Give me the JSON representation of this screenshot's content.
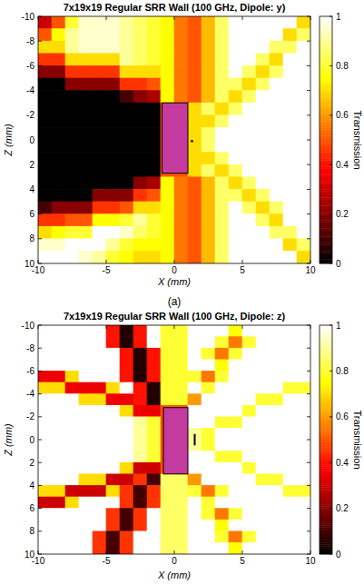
{
  "chart_data": [
    {
      "type": "heatmap",
      "title": "7x19x19 Regular SRR Wall (100 GHz, Dipole: y)",
      "x_label": "X (mm)",
      "y_label": "Z (mm)",
      "caption": "(a)",
      "xlim": [
        -10,
        10
      ],
      "xticks": [
        -10,
        -5,
        0,
        5,
        10
      ],
      "ylim": [
        10,
        -10
      ],
      "yticks": [
        -10,
        -8,
        -6,
        -4,
        -2,
        0,
        2,
        4,
        6,
        8,
        10
      ],
      "clim": [
        0,
        1
      ],
      "cticks": [
        0,
        0.2,
        0.4,
        0.6,
        0.8,
        1
      ],
      "colorbar_label": "Transmission",
      "slab": {
        "x": [
          -0.9,
          1
        ],
        "y": [
          -3,
          2.7
        ]
      },
      "dipole": {
        "x": 1.3,
        "y": 0.1
      },
      "x": [
        -9.5,
        -8.5,
        -7.5,
        -6.5,
        -5.5,
        -4.5,
        -3.5,
        -2.5,
        -1.5,
        -0.5,
        0.5,
        1.5,
        2.5,
        3.5,
        4.5,
        5.5,
        6.5,
        7.5,
        8.5,
        9.5
      ],
      "y": [
        -9.5,
        -8.5,
        -7.5,
        -6.5,
        -5.5,
        -4.5,
        -3.5,
        -2.5,
        -1.5,
        -0.5,
        0.5,
        1.5,
        2.5,
        3.5,
        4.5,
        5.5,
        6.5,
        7.5,
        8.5,
        9.5
      ],
      "cells": [
        [
          0.3,
          0.5,
          0.8,
          0.95,
          0.95,
          0.95,
          0.9,
          0.85,
          0.8,
          0.75,
          0.55,
          0.5,
          0.65,
          0.85,
          1,
          1,
          1,
          1,
          1,
          0.7
        ],
        [
          0.5,
          0.75,
          0.9,
          0.95,
          0.95,
          0.95,
          0.9,
          0.85,
          0.8,
          0.75,
          0.55,
          0.5,
          0.65,
          0.85,
          1,
          1,
          1,
          1,
          0.7,
          0.85
        ],
        [
          0.7,
          0.7,
          0.9,
          0.95,
          0.95,
          0.95,
          0.9,
          0.85,
          0.8,
          0.75,
          0.55,
          0.5,
          0.65,
          0.85,
          1,
          1,
          1,
          0.85,
          0.85,
          1
        ],
        [
          0.45,
          0.45,
          0.7,
          0.7,
          0.7,
          0.7,
          0.9,
          0.85,
          0.8,
          0.75,
          0.55,
          0.5,
          0.65,
          0.85,
          1,
          1,
          0.85,
          0.7,
          1,
          1
        ],
        [
          0.2,
          0.2,
          0.45,
          0.45,
          0.45,
          0.45,
          0.7,
          0.7,
          0.7,
          0.75,
          0.55,
          0.5,
          0.65,
          0.85,
          1,
          0.85,
          0.7,
          0.85,
          1,
          1
        ],
        [
          0,
          0,
          0.2,
          0.2,
          0.2,
          0.2,
          0.45,
          0.45,
          0.5,
          0.75,
          0.55,
          0.5,
          0.65,
          0.85,
          0.85,
          0.7,
          0.85,
          1,
          1,
          1
        ],
        [
          0,
          0,
          0,
          0,
          0,
          0,
          0.1,
          0.2,
          0.25,
          0.75,
          0.55,
          0.5,
          0.65,
          0.85,
          0.7,
          0.85,
          1,
          1,
          1,
          1
        ],
        [
          0,
          0,
          0,
          0,
          0,
          0,
          0,
          0,
          0,
          0.5,
          0.5,
          0.7,
          0.85,
          0.7,
          0.85,
          1,
          1,
          1,
          1,
          1
        ],
        [
          0,
          0,
          0,
          0,
          0,
          0,
          0,
          0,
          0,
          0.5,
          0.5,
          0.7,
          0.7,
          0.85,
          1,
          1,
          1,
          1,
          1,
          1
        ],
        [
          0,
          0,
          0,
          0,
          0,
          0,
          0,
          0,
          0,
          0.5,
          0.5,
          0.7,
          0.85,
          1,
          1,
          1,
          1,
          1,
          1,
          1
        ],
        [
          0,
          0,
          0,
          0,
          0,
          0,
          0,
          0,
          0,
          0.5,
          0.5,
          0.7,
          0.85,
          1,
          1,
          1,
          1,
          1,
          1,
          1
        ],
        [
          0,
          0,
          0,
          0,
          0,
          0,
          0,
          0,
          0,
          0.5,
          0.5,
          0.7,
          0.7,
          0.85,
          1,
          1,
          1,
          1,
          1,
          1
        ],
        [
          0,
          0,
          0,
          0,
          0,
          0,
          0,
          0,
          0,
          0.5,
          0.5,
          0.7,
          0.85,
          0.7,
          0.85,
          1,
          1,
          1,
          1,
          1
        ],
        [
          0,
          0,
          0,
          0,
          0,
          0,
          0,
          0.2,
          0.25,
          0.75,
          0.55,
          0.5,
          0.65,
          0.85,
          0.7,
          0.85,
          1,
          1,
          1,
          1
        ],
        [
          0,
          0,
          0,
          0,
          0.2,
          0.2,
          0.2,
          0.45,
          0.5,
          0.75,
          0.55,
          0.5,
          0.65,
          0.85,
          0.85,
          0.7,
          0.85,
          1,
          1,
          1
        ],
        [
          0.1,
          0.2,
          0.2,
          0.2,
          0.45,
          0.45,
          0.5,
          0.7,
          0.7,
          0.75,
          0.55,
          0.5,
          0.65,
          0.85,
          1,
          0.85,
          0.7,
          0.85,
          1,
          1
        ],
        [
          0.45,
          0.45,
          0.5,
          0.5,
          0.75,
          0.75,
          0.8,
          0.9,
          0.8,
          0.75,
          0.55,
          0.5,
          0.65,
          0.85,
          1,
          1,
          0.85,
          0.7,
          1,
          1
        ],
        [
          0.7,
          0.75,
          0.8,
          0.8,
          1,
          1,
          0.95,
          0.85,
          0.8,
          0.75,
          0.55,
          0.5,
          0.65,
          0.85,
          1,
          1,
          1,
          0.85,
          0.85,
          1
        ],
        [
          0.95,
          0.95,
          1,
          1,
          1,
          0.9,
          0.8,
          0.75,
          0.75,
          0.75,
          0.55,
          0.5,
          0.65,
          0.85,
          1,
          1,
          1,
          1,
          0.7,
          0.85
        ],
        [
          1,
          1,
          1,
          0.95,
          0.9,
          0.8,
          0.75,
          0.7,
          0.7,
          0.75,
          0.55,
          0.5,
          0.65,
          0.85,
          1,
          1,
          1,
          1,
          1,
          0.7
        ]
      ]
    },
    {
      "type": "heatmap",
      "title": "7x19x19 Regular SRR Wall (100 GHz, Dipole: z)",
      "x_label": "X (mm)",
      "y_label": "Z (mm)",
      "xlim": [
        -10,
        10
      ],
      "xticks": [
        -10,
        -5,
        0,
        5,
        10
      ],
      "ylim": [
        10,
        -10
      ],
      "yticks": [
        -10,
        -8,
        -6,
        -4,
        -2,
        0,
        2,
        4,
        6,
        8,
        10
      ],
      "clim": [
        0,
        1
      ],
      "cticks": [
        0,
        0.2,
        0.4,
        0.6,
        0.8,
        1
      ],
      "colorbar_label": "Transmission",
      "slab": {
        "x": [
          -0.8,
          1
        ],
        "y": [
          -2.8,
          3
        ]
      },
      "dipole": {
        "x": 1.5,
        "y": [
          -0.5,
          0.5
        ]
      },
      "x": [
        -9.5,
        -8.5,
        -7.5,
        -6.5,
        -5.5,
        -4.5,
        -3.5,
        -2.5,
        -1.5,
        -0.5,
        0.5,
        1.5,
        2.5,
        3.5,
        4.5,
        5.5,
        6.5,
        7.5,
        8.5,
        9.5
      ],
      "y": [
        -9.5,
        -8.5,
        -7.5,
        -6.5,
        -5.5,
        -4.5,
        -3.5,
        -2.5,
        -1.5,
        -0.5,
        0.5,
        1.5,
        2.5,
        3.5,
        4.5,
        5.5,
        6.5,
        7.5,
        8.5,
        9.5
      ],
      "cells": [
        [
          1,
          1,
          1,
          1,
          1,
          0.4,
          0.05,
          0.4,
          1,
          0.8,
          0.8,
          1,
          1,
          1,
          0.75,
          1,
          1,
          1,
          1,
          1
        ],
        [
          1,
          1,
          1,
          1,
          1,
          0.4,
          0.05,
          0.4,
          1,
          0.8,
          0.8,
          1,
          1,
          0.8,
          0.55,
          0.8,
          1,
          1,
          1,
          1
        ],
        [
          1,
          1,
          1,
          1,
          1,
          1,
          0.4,
          0.05,
          0.4,
          0.8,
          0.8,
          1,
          0.8,
          0.55,
          0.8,
          1,
          1,
          1,
          1,
          1
        ],
        [
          1,
          1,
          1,
          1,
          1,
          1,
          0.4,
          0.05,
          0.4,
          0.8,
          0.8,
          1,
          1,
          0.75,
          1,
          1,
          1,
          1,
          1,
          1
        ],
        [
          0.35,
          0.35,
          0.7,
          1,
          1,
          1,
          0.4,
          0.05,
          0.4,
          0.8,
          0.8,
          0.8,
          0.55,
          0.8,
          1,
          1,
          1,
          1,
          1,
          1
        ],
        [
          0.7,
          0.7,
          0.35,
          0.35,
          0.35,
          0.7,
          1,
          0.4,
          0.05,
          0.8,
          0.8,
          1,
          0.8,
          1,
          1,
          1,
          1,
          1,
          0.8,
          0.8
        ],
        [
          1,
          1,
          1,
          0.7,
          0.7,
          0.35,
          0.35,
          0.4,
          0.05,
          0.8,
          0.8,
          0.6,
          1,
          1,
          1,
          1,
          0.8,
          0.8,
          1,
          1
        ],
        [
          1,
          1,
          1,
          1,
          1,
          1,
          0.7,
          0.35,
          0.35,
          0.5,
          0.5,
          1,
          1,
          1,
          1,
          0.8,
          1,
          1,
          1,
          1
        ],
        [
          1,
          1,
          1,
          1,
          1,
          1,
          1,
          0.9,
          0.8,
          0.5,
          0.5,
          1,
          1,
          0.8,
          0.8,
          1,
          1,
          1,
          1,
          1
        ],
        [
          1,
          1,
          1,
          1,
          1,
          1,
          1,
          0.9,
          0.8,
          0.5,
          0.5,
          0.9,
          0.8,
          1,
          1,
          1,
          1,
          1,
          1,
          1
        ],
        [
          1,
          1,
          1,
          1,
          1,
          1,
          1,
          0.9,
          0.8,
          0.5,
          0.5,
          0.9,
          0.8,
          1,
          1,
          1,
          1,
          1,
          1,
          1
        ],
        [
          1,
          1,
          1,
          1,
          1,
          1,
          1,
          0.9,
          0.8,
          0.5,
          0.5,
          1,
          1,
          0.8,
          0.8,
          1,
          1,
          1,
          1,
          1
        ],
        [
          1,
          1,
          1,
          1,
          1,
          1,
          0.7,
          0.3,
          0.3,
          0.5,
          0.5,
          1,
          1,
          1,
          1,
          0.8,
          1,
          1,
          1,
          1
        ],
        [
          1,
          1,
          1,
          0.7,
          0.7,
          0.3,
          0.3,
          0.45,
          0.1,
          0.85,
          0.85,
          0.6,
          1,
          1,
          1,
          1,
          0.8,
          0.8,
          1,
          1
        ],
        [
          0.7,
          0.7,
          0.3,
          0.3,
          0.3,
          0.7,
          0.45,
          0.1,
          0.45,
          0.85,
          0.85,
          0.8,
          0.55,
          0.8,
          1,
          1,
          1,
          1,
          0.8,
          0.8
        ],
        [
          0.3,
          0.3,
          0.7,
          1,
          1,
          1,
          0.45,
          0.1,
          0.45,
          0.85,
          0.85,
          1,
          0.8,
          1,
          1,
          1,
          1,
          1,
          1,
          1
        ],
        [
          1,
          1,
          1,
          1,
          1,
          0.45,
          0.1,
          0.45,
          1,
          0.85,
          0.85,
          1,
          0.8,
          0.55,
          0.8,
          1,
          1,
          1,
          1,
          1
        ],
        [
          1,
          1,
          1,
          1,
          1,
          0.45,
          0.1,
          0.45,
          1,
          0.85,
          0.85,
          1,
          1,
          0.75,
          1,
          1,
          1,
          1,
          1,
          1
        ],
        [
          1,
          1,
          1,
          1,
          0.45,
          0.1,
          0.45,
          1,
          1,
          0.85,
          0.85,
          1,
          1,
          0.8,
          0.55,
          0.8,
          1,
          1,
          1,
          1
        ],
        [
          1,
          1,
          1,
          1,
          0.45,
          0.1,
          0.45,
          1,
          1,
          0.85,
          0.85,
          1,
          1,
          1,
          0.75,
          1,
          1,
          1,
          1,
          1
        ]
      ]
    }
  ]
}
